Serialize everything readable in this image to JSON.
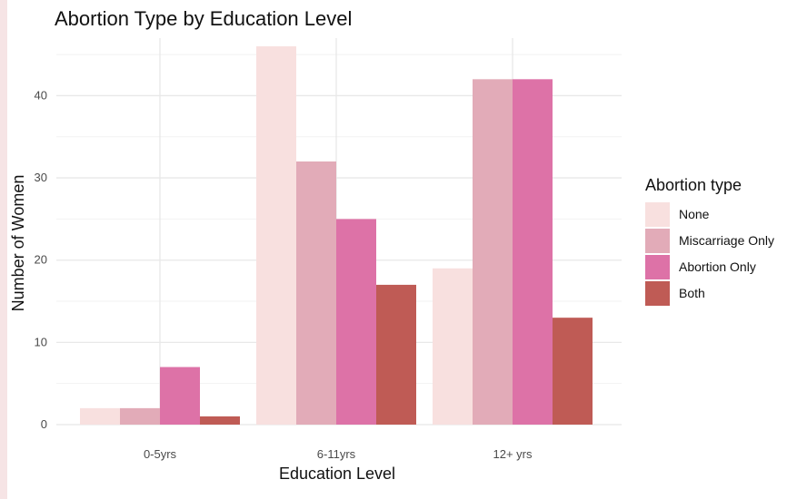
{
  "chart_data": {
    "type": "bar",
    "title": "Abortion Type by Education Level",
    "xlabel": "Education Level",
    "ylabel": "Number of Women",
    "categories": [
      "0-5yrs",
      "6-11yrs",
      "12+ yrs"
    ],
    "series": [
      {
        "name": "None",
        "values": [
          2,
          46,
          19
        ],
        "color": "#f8e0df"
      },
      {
        "name": "Miscarriage Only",
        "values": [
          2,
          32,
          42
        ],
        "color": "#e2abb8"
      },
      {
        "name": "Abortion Only",
        "values": [
          7,
          25,
          42
        ],
        "color": "#dd72a7"
      },
      {
        "name": "Both",
        "values": [
          1,
          17,
          13
        ],
        "color": "#bf5b55"
      }
    ],
    "ylim": [
      0,
      47
    ],
    "yticks": [
      0,
      10,
      20,
      30,
      40
    ],
    "grid": true,
    "legend": {
      "title": "Abortion type",
      "position": "right"
    }
  }
}
